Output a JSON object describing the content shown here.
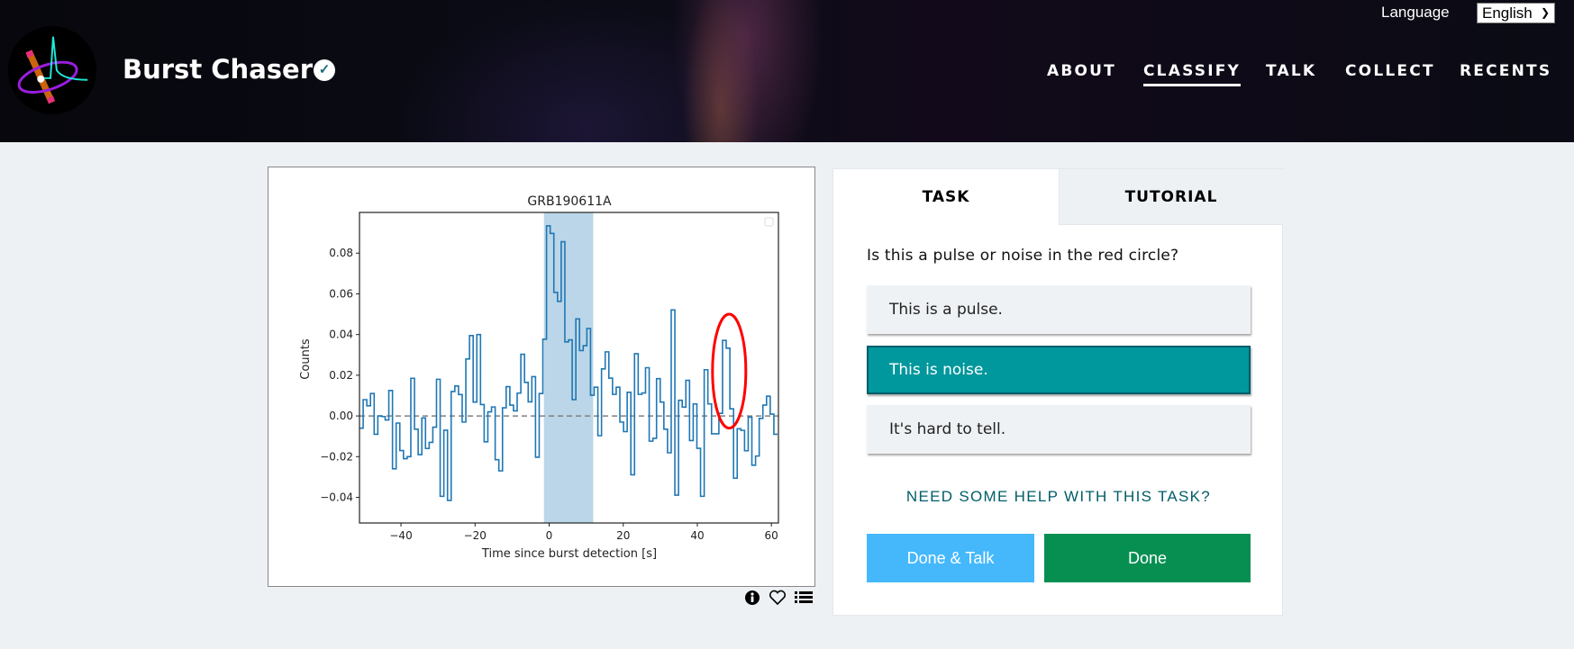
{
  "header": {
    "project_title": "Burst Chaser",
    "verified_icon": "check-circle-icon",
    "language_label": "Language",
    "language_selected": "English",
    "nav": [
      {
        "label": "ABOUT",
        "active": false
      },
      {
        "label": "CLASSIFY",
        "active": true
      },
      {
        "label": "TALK",
        "active": false
      },
      {
        "label": "COLLECT",
        "active": false
      },
      {
        "label": "RECENTS",
        "active": false
      }
    ]
  },
  "subject_icons": [
    "info-icon",
    "heart-icon",
    "list-icon"
  ],
  "panel": {
    "tabs": [
      {
        "label": "TASK",
        "active": true
      },
      {
        "label": "TUTORIAL",
        "active": false
      }
    ],
    "question": "Is this a pulse or noise in the red circle?",
    "options": [
      {
        "label": "This is a pulse.",
        "selected": false
      },
      {
        "label": "This is noise.",
        "selected": true
      },
      {
        "label": "It's hard to tell.",
        "selected": false
      }
    ],
    "help_link": "NEED SOME HELP WITH THIS TASK?",
    "done_talk_label": "Done & Talk",
    "done_label": "Done"
  },
  "colors": {
    "selected": "#00979d",
    "done": "#078f52",
    "done_talk": "#45b8fc",
    "help": "#005d69",
    "series": "#1f77b4",
    "highlight": "#1f77b4",
    "circle": "#ff0000"
  },
  "chart_data": {
    "type": "line",
    "style": "step",
    "title": "GRB190611A",
    "xlabel": "Time since burst detection [s]",
    "ylabel": "Counts",
    "xlim": [
      -51.2,
      61.9
    ],
    "ylim": [
      -0.0526,
      0.1
    ],
    "xticks": [
      -40,
      -20,
      0,
      20,
      40,
      60
    ],
    "yticks": [
      -0.04,
      -0.02,
      0.0,
      0.02,
      0.04,
      0.06,
      0.08
    ],
    "ytick_labels": [
      "−0.04",
      "−0.02",
      "0.00",
      "0.02",
      "0.04",
      "0.06",
      "0.08"
    ],
    "xtick_labels": [
      "−40",
      "−20",
      "0",
      "20",
      "40",
      "60"
    ],
    "grid": false,
    "legend": "top-right (empty)",
    "x_start": -51.2,
    "bin_width": 0.99,
    "values": [
      -0.006,
      0.008,
      0.005,
      0.011,
      -0.009,
      0.0,
      -0.0003,
      -0.002,
      0.0125,
      -0.026,
      -0.0035,
      -0.017,
      -0.021,
      -0.02,
      0.0185,
      -0.0065,
      -0.019,
      -0.001,
      -0.016,
      -0.013,
      -0.0055,
      0.018,
      -0.0395,
      -0.007,
      -0.0415,
      0.012,
      0.0147,
      0.0105,
      -0.003,
      0.028,
      0.0395,
      0.0068,
      0.04,
      0.0056,
      -0.0127,
      0.002,
      0.0044,
      -0.0215,
      -0.027,
      0.004,
      0.0144,
      0.0053,
      0.0025,
      0.0112,
      0.0303,
      0.0165,
      0.0069,
      0.0193,
      -0.0203,
      0.011,
      0.0377,
      0.0934,
      0.0897,
      0.0607,
      0.0563,
      0.0856,
      0.0364,
      0.0374,
      0.008,
      0.0477,
      0.0321,
      0.0345,
      0.043,
      0.0102,
      0.0141,
      -0.0097,
      0.0231,
      0.0315,
      0.0186,
      0.0106,
      0.0141,
      -0.003,
      -0.0077,
      0.0116,
      -0.0289,
      0.0306,
      0.0106,
      0.0113,
      0.0237,
      -0.0124,
      -0.011,
      0.0183,
      0.0068,
      -0.0065,
      -0.0181,
      0.0521,
      -0.0389,
      0.0077,
      0.0043,
      0.0175,
      -0.0121,
      0.0059,
      -0.0159,
      -0.0395,
      0.0227,
      0.0059,
      -0.0088,
      -0.0088,
      0.0013,
      0.0371,
      0.0333,
      0.0035,
      -0.0306,
      -0.0063,
      -0.0071,
      -0.0171,
      -0.0006,
      -0.0242,
      -0.0197,
      -0.0012,
      0.0053,
      0.0097,
      0.0009,
      -0.009
    ],
    "baseline": 0.0,
    "highlight_region": [
      -1.4,
      11.9
    ],
    "annotation_ellipse": {
      "center": [
        48.6,
        0.022
      ],
      "half_width": 4.5,
      "half_height": 0.028
    }
  }
}
